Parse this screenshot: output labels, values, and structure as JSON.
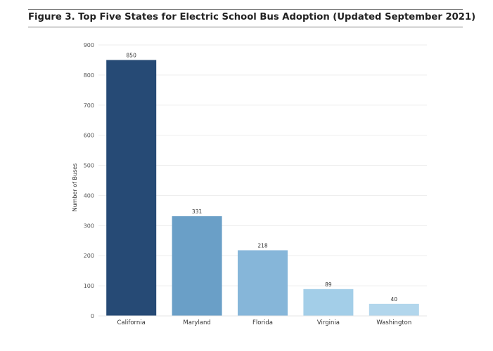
{
  "figure": {
    "title": "Figure 3. Top Five States for Electric School Bus Adoption (Updated September 2021)"
  },
  "chart_data": {
    "type": "bar",
    "title": "Figure 3. Top Five States for Electric School Bus Adoption (Updated September 2021)",
    "xlabel": "",
    "ylabel": "Number of Buses",
    "categories": [
      "California",
      "Maryland",
      "Florida",
      "Virginia",
      "Washington"
    ],
    "values": [
      850,
      331,
      218,
      89,
      40
    ],
    "data_labels": [
      "850",
      "331",
      "218",
      "89",
      "40"
    ],
    "colors": [
      "#264a75",
      "#6a9fc7",
      "#86b6d9",
      "#a3cee8",
      "#b2d6ec"
    ],
    "ylim": [
      0,
      900
    ],
    "yticks": [
      0,
      100,
      200,
      300,
      400,
      500,
      600,
      700,
      800,
      900
    ],
    "grid": true,
    "gridline_color": "#eeeeee",
    "legend": "none"
  }
}
